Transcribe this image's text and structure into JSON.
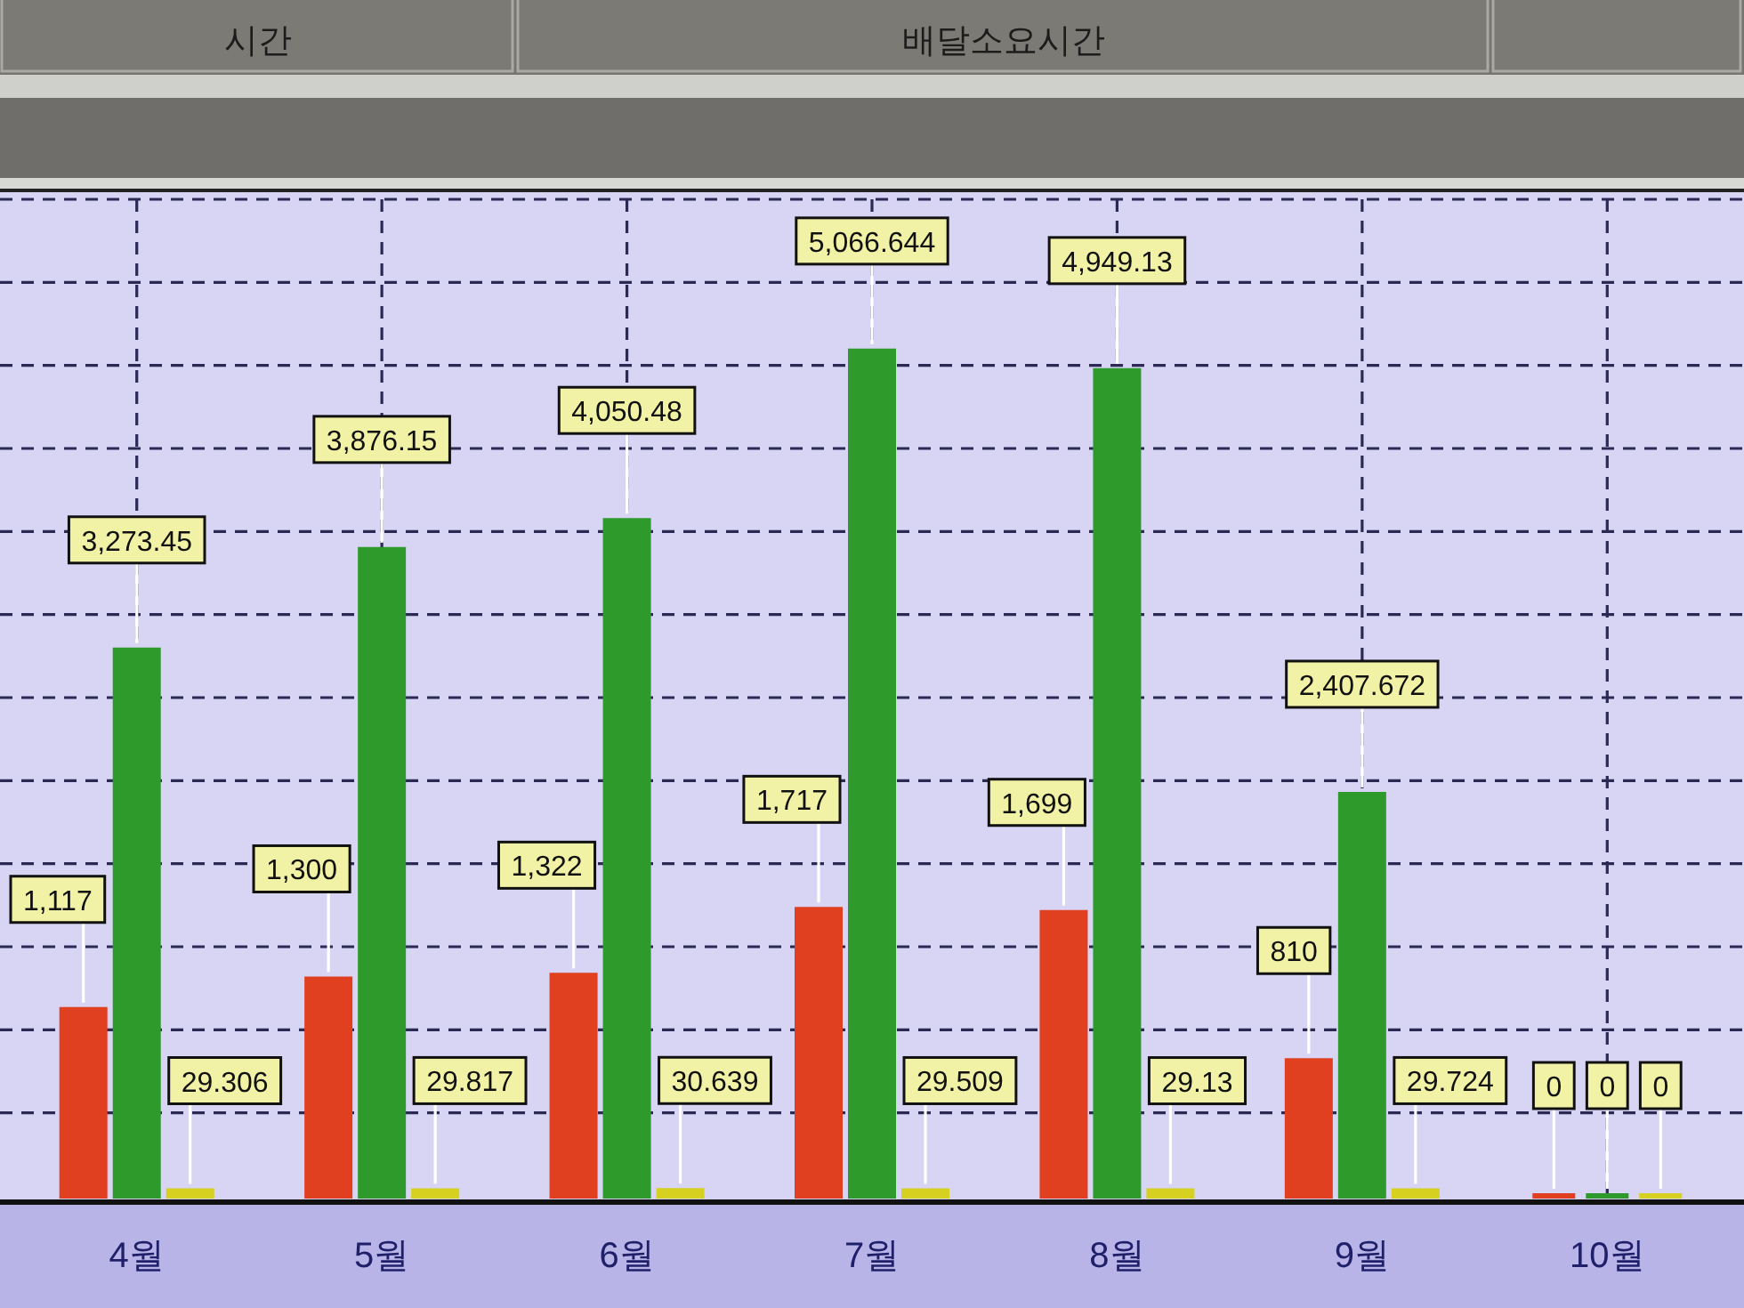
{
  "chart_data": {
    "type": "bar",
    "categories": [
      "4월",
      "5월",
      "6월",
      "7월",
      "8월",
      "9월",
      "10월"
    ],
    "series": [
      {
        "color": "#e0401f",
        "values": [
          1117,
          1300,
          1322,
          1717,
          1699,
          810,
          0
        ],
        "value_labels": [
          "1,117",
          "1,300",
          "1,322",
          "1,717",
          "1,699",
          "810",
          "0"
        ]
      },
      {
        "color": "#2e9a2c",
        "values": [
          3273.45,
          3876.15,
          4050.48,
          5066.644,
          4949.13,
          2407.672,
          0
        ],
        "value_labels": [
          "3,273.45",
          "3,876.15",
          "4,050.48",
          "5,066.644",
          "4,949.13",
          "2,407.672",
          "0"
        ]
      },
      {
        "color": "#d6d020",
        "values": [
          29.306,
          29.817,
          30.639,
          29.509,
          29.13,
          29.724,
          0
        ],
        "value_labels": [
          "29.306",
          "29.817",
          "30.639",
          "29.509",
          "29.13",
          "29.724",
          "0"
        ]
      }
    ],
    "grid": true,
    "annotations": [
      "시간",
      "배달소요시간"
    ]
  }
}
